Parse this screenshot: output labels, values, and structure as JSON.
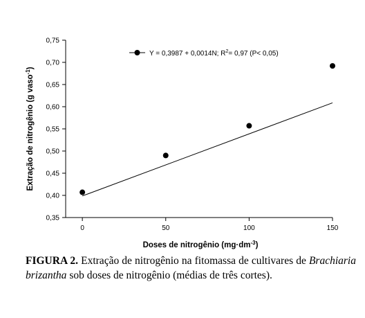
{
  "chart_data": {
    "type": "scatter",
    "xlabel": "Doses de nitrogênio (mg·dm",
    "xlabel_sup": "-3",
    "xlabel_end": ")",
    "ylabel": "Extração de nitrogênio (g vaso",
    "ylabel_sup": "-1",
    "ylabel_end": ")",
    "xlim": [
      -10,
      150
    ],
    "ylim": [
      0.35,
      0.75
    ],
    "x_ticks": [
      0,
      50,
      100,
      150
    ],
    "x_tick_labels": [
      "0",
      "50",
      "100",
      "150"
    ],
    "y_ticks": [
      0.35,
      0.4,
      0.45,
      0.5,
      0.55,
      0.6,
      0.65,
      0.7,
      0.75
    ],
    "y_tick_labels": [
      "0,35",
      "0,40",
      "0,45",
      "0,50",
      "0,55",
      "0,60",
      "0,65",
      "0,70",
      "0,75"
    ],
    "points": [
      {
        "x": 0,
        "y": 0.407
      },
      {
        "x": 50,
        "y": 0.49
      },
      {
        "x": 100,
        "y": 0.557
      },
      {
        "x": 150,
        "y": 0.692
      }
    ],
    "regression": {
      "intercept": 0.3987,
      "slope": 0.0014,
      "x_range": [
        0,
        150
      ]
    },
    "legend": {
      "label_main": "Y = 0,3987 + 0,0014N; R",
      "label_sup": "2",
      "label_end": "= 0,97 (P< 0,05)",
      "placement": "top-center"
    },
    "grid": false
  },
  "caption": {
    "label": "FIGURA 2.",
    "text_before": " Extração de nitrogênio na fitomassa de cultivares de ",
    "species": "Brachiaria brizantha",
    "text_after": " sob doses de nitrogênio (médias de três cortes)."
  }
}
